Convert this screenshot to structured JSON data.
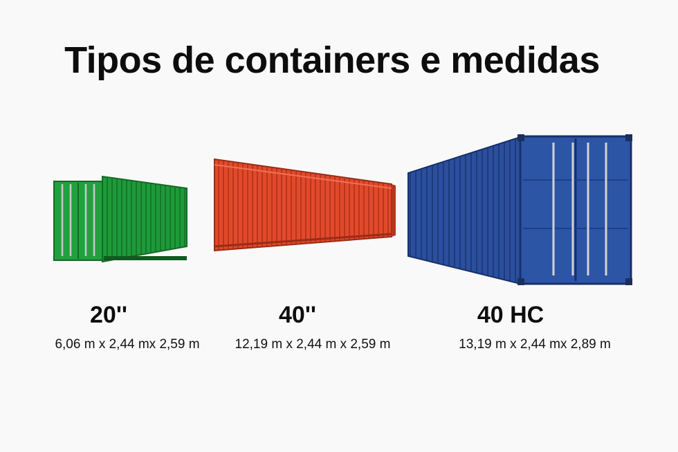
{
  "title": "Tipos de containers e medidas",
  "containers": [
    {
      "label": "20''",
      "dimensions": "6,06 m x 2,44 mx 2,59 m",
      "color": "#1f9a3a",
      "icon": "green-container-image"
    },
    {
      "label": "40''",
      "dimensions": "12,19 m x 2,44 m x 2,59 m",
      "color": "#e04a2c",
      "icon": "red-container-image"
    },
    {
      "label": "40 HC",
      "dimensions": "13,19 m x 2,44 mx 2,89 m",
      "color": "#2a4e9c",
      "icon": "blue-container-image"
    }
  ]
}
